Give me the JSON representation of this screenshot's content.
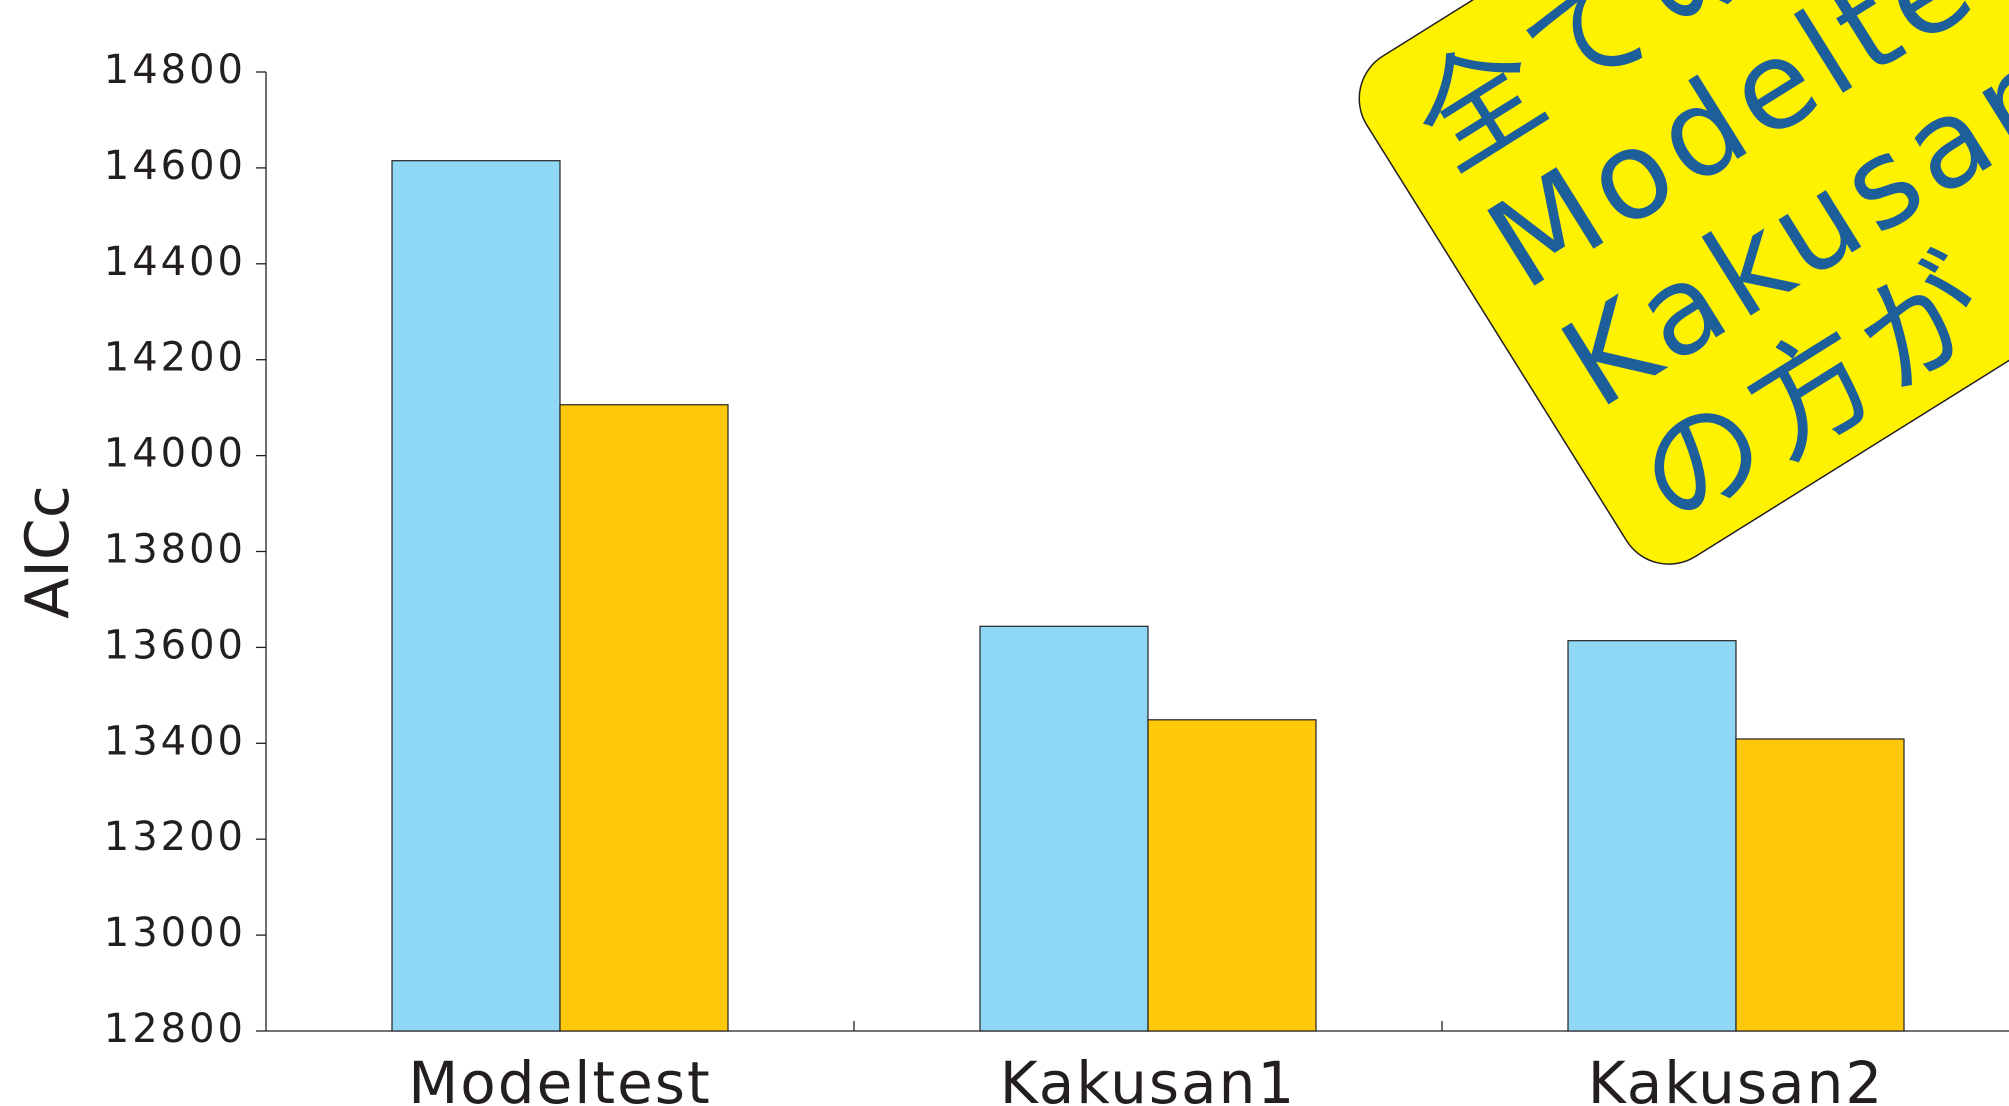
{
  "chart_data": {
    "type": "bar",
    "y_label": "AICc",
    "categories": [
      "Modeltest",
      "Kakusan1",
      "Kakusan2"
    ],
    "series": [
      {
        "color": "#8fd8f5",
        "values": [
          14615,
          13644,
          13614
        ]
      },
      {
        "color": "#ffc90a",
        "values": [
          14106,
          13449,
          13409
        ]
      }
    ],
    "ylim": [
      12800,
      14800
    ],
    "yticks": [
      12800,
      13000,
      13200,
      13400,
      13600,
      13800,
      14000,
      14200,
      14400,
      14600,
      14800
    ],
    "annotation": {
      "lines": [
        "全ての",
        "Modelte",
        "Kakusan",
        "の方が"
      ],
      "color": "#fff200"
    }
  }
}
